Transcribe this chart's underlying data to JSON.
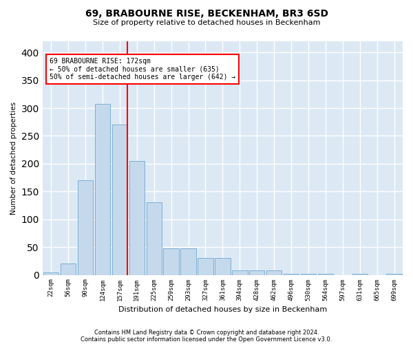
{
  "title1": "69, BRABOURNE RISE, BECKENHAM, BR3 6SD",
  "title2": "Size of property relative to detached houses in Beckenham",
  "xlabel": "Distribution of detached houses by size in Beckenham",
  "ylabel": "Number of detached properties",
  "bar_color": "#c5d9ed",
  "bar_edge_color": "#7aafd4",
  "background_color": "#dce9f5",
  "grid_color": "#ffffff",
  "categories": [
    "22sqm",
    "56sqm",
    "90sqm",
    "124sqm",
    "157sqm",
    "191sqm",
    "225sqm",
    "259sqm",
    "293sqm",
    "327sqm",
    "361sqm",
    "394sqm",
    "428sqm",
    "462sqm",
    "496sqm",
    "530sqm",
    "564sqm",
    "597sqm",
    "631sqm",
    "665sqm",
    "699sqm"
  ],
  "values": [
    5,
    20,
    170,
    308,
    270,
    205,
    130,
    48,
    48,
    30,
    30,
    8,
    8,
    8,
    2,
    2,
    2,
    0,
    2,
    0,
    2
  ],
  "ylim": [
    0,
    420
  ],
  "yticks": [
    0,
    50,
    100,
    150,
    200,
    250,
    300,
    350,
    400
  ],
  "property_label": "69 BRABOURNE RISE: 172sqm",
  "annotation_line1": "← 50% of detached houses are smaller (635)",
  "annotation_line2": "50% of semi-detached houses are larger (642) →",
  "vline_position": 4.45,
  "footnote1": "Contains HM Land Registry data © Crown copyright and database right 2024.",
  "footnote2": "Contains public sector information licensed under the Open Government Licence v3.0."
}
